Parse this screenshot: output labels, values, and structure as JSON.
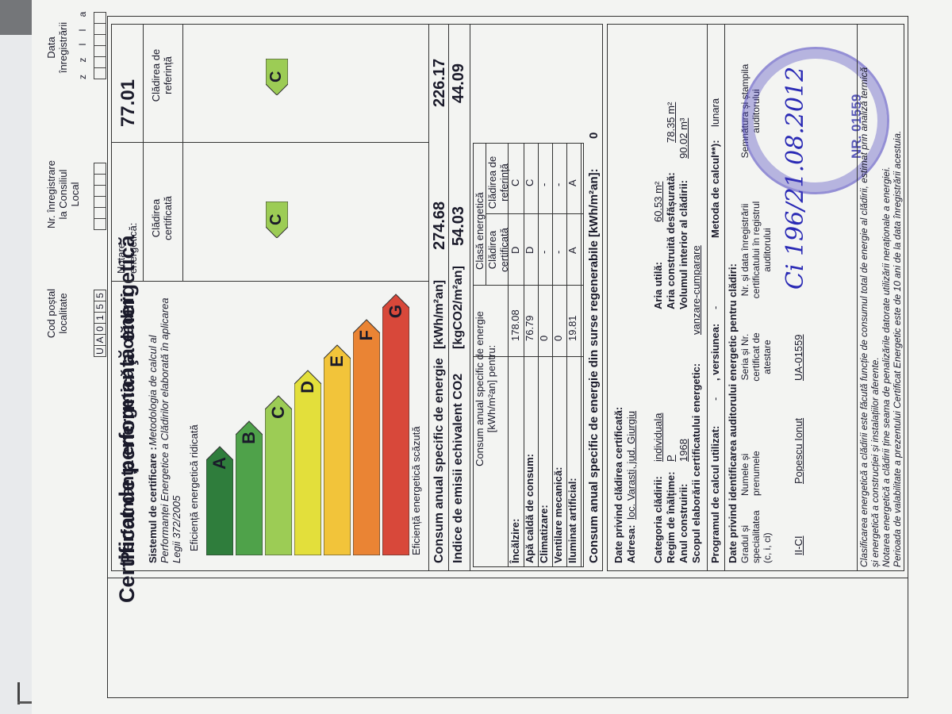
{
  "header": {
    "cod_postal_label": "Cod poștal localitate",
    "cod_postal_cells": [
      "U",
      "A",
      "0",
      "1",
      "5",
      "5"
    ],
    "nr_inregistrare_label": "Nr. înregistrare la Consiliul Local",
    "data_label": "Data înregistrării",
    "date_format": "z z l l a a"
  },
  "title": "Certificat de performanţă energetică",
  "panel": {
    "heading": "Performanța energetică a clădirii",
    "notare_label": "Notare energetică:",
    "notare_value": "77.01",
    "sistem_label": "Sistemul de certificare :",
    "sistem_text": "Metodologia de calcul al Performanței Energetice a Clădirilor elaborată în aplicarea Legii 372/2005",
    "col_certificata": "Clădirea certificată",
    "col_referinta": "Clădirea de referință",
    "eff_high": "Eficiență energetică ridicată",
    "eff_low": "Eficiență energetică scăzută"
  },
  "energy_classes": [
    {
      "letter": "A",
      "color": "#2f7d3c"
    },
    {
      "letter": "B",
      "color": "#4fa24a"
    },
    {
      "letter": "C",
      "color": "#9ccc55"
    },
    {
      "letter": "D",
      "color": "#e3df3b"
    },
    {
      "letter": "E",
      "color": "#f2c43a"
    },
    {
      "letter": "F",
      "color": "#ea8434"
    },
    {
      "letter": "G",
      "color": "#d8483a"
    }
  ],
  "rating": {
    "certificata": "C",
    "referinta": "C"
  },
  "consumption": {
    "consum_label": "Consum anual specific de energie",
    "consum_unit": "[kWh/m²an]",
    "consum_cert": "274.68",
    "consum_ref": "226.17",
    "emisii_label": "Indice de emisii echivalent CO2",
    "emisii_unit": "[kgCO2/m²an]",
    "emisii_cert": "54.03",
    "emisii_ref": "44.09"
  },
  "table": {
    "header_consum": "Consum anual specific de energie [kWh/m²an] pentru:",
    "header_clasa": "Clasă energetică",
    "sub_cert": "Clădirea certificată",
    "sub_ref": "Clădirea de referință",
    "rows": [
      {
        "label": "Încălzire:",
        "value": "178.08",
        "cert": "D",
        "ref": "C"
      },
      {
        "label": "Apă caldă de consum:",
        "value": "76.79",
        "cert": "D",
        "ref": "C"
      },
      {
        "label": "Climatizare:",
        "value": "0",
        "cert": "-",
        "ref": "-"
      },
      {
        "label": "Ventilare mecanică:",
        "value": "0",
        "cert": "-",
        "ref": "-"
      },
      {
        "label": "Iluminat artificial:",
        "value": "19.81",
        "cert": "A",
        "ref": "A"
      }
    ],
    "regenerabile_label": "Consum anual specific de energie din surse regenerabile [kWh/m²an]:",
    "regenerabile_value": "0"
  },
  "cladire": {
    "heading": "Date privind clădirea certificată:",
    "adresa_label": "Adresa:",
    "adresa_value": "loc. Varasti, jud. Giurgiu",
    "categoria_label": "Categoria clădirii:",
    "categoria_value": "individuala",
    "regim_label": "Regim de înălțime:",
    "regim_value": "P",
    "an_label": "Anul construirii:",
    "an_value": "1968",
    "scop_label": "Scopul elaborării certificatului energetic:",
    "scop_value": "vanzare-cumparare",
    "aria_utila_label": "Aria utilă:",
    "aria_utila_value": "60.53 m²",
    "aria_constr_label": "Aria construită desfășurată:",
    "aria_constr_value": "78.35 m²",
    "volum_label": "Volumul interior al clădirii:",
    "volum_value": "90.02 m³"
  },
  "program": {
    "label": "Programul de calcul utilizat:",
    "value": "-",
    "versiunea_label": ", versiunea:",
    "versiunea_value": "-",
    "metoda_label": "Metoda de calcul**):",
    "metoda_value": "lunara"
  },
  "auditor": {
    "heading": "Date privind identificarea auditorului energetic pentru clădiri:",
    "col_grad": "Gradul și specialitatea (c, i, ci)",
    "col_nume": "Numele și prenumele",
    "col_serie": "Seria și Nr. certificat de atestare",
    "col_nr": "Nr. și data înregistrării certificatului în registrul auditorului",
    "col_semn": "Semnătura și ștampila auditorului",
    "grad": "II-CI",
    "nume": "Popescu Ionut",
    "serie": "UA-01559",
    "handwritten": "Ci 196/21.08.2012",
    "stamp_nr": "NR. 01559"
  },
  "footer": [
    "Clasificarea energetică a clădirii este făcută funcție de consumul total de energie al clădirii, estimat prin analiză termică",
    "și energetică a construcției și instalațiilor aferente.",
    "Notarea energetică a clădirii ține seama de penalizările datorate utilizării neraționale a energiei.",
    "Perioada de valabilitate a prezentului Certificat Energetic este de 10 ani de la data înregistrării acestuia."
  ]
}
